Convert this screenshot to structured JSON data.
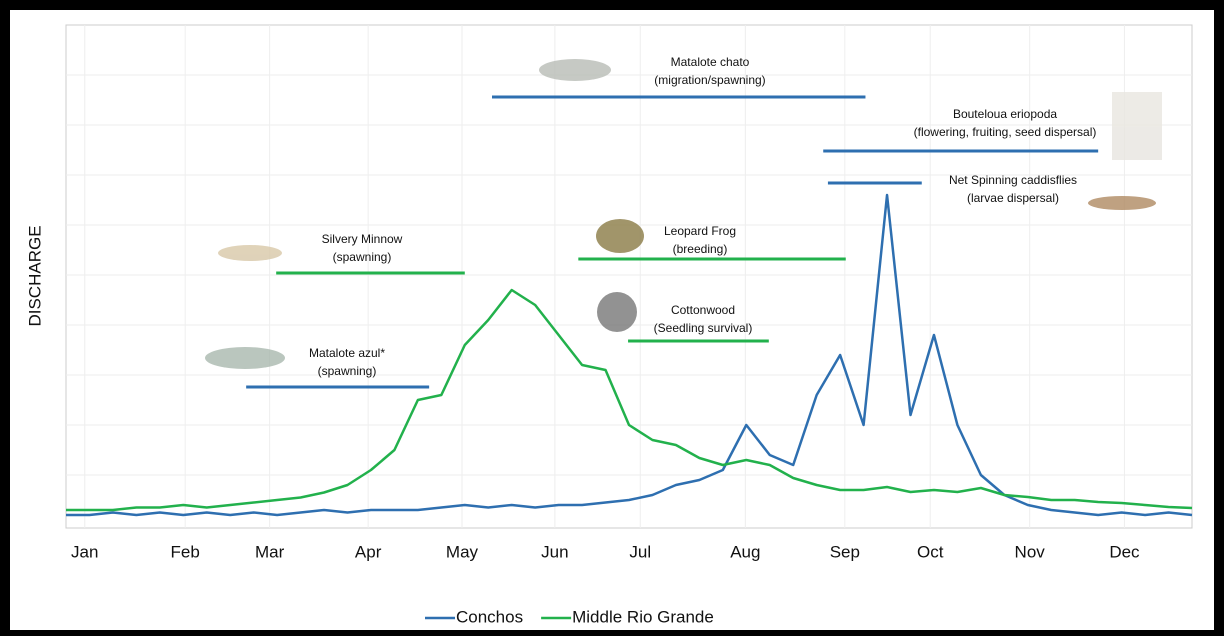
{
  "chart_data": {
    "type": "line",
    "y_label": "DISCHARGE",
    "xlim": [
      0,
      12
    ],
    "xticks": [
      {
        "value": 0.2,
        "label": "Jan"
      },
      {
        "value": 1.27,
        "label": "Feb"
      },
      {
        "value": 2.17,
        "label": "Mar"
      },
      {
        "value": 3.22,
        "label": "Apr"
      },
      {
        "value": 4.22,
        "label": "May"
      },
      {
        "value": 5.21,
        "label": "Jun"
      },
      {
        "value": 6.12,
        "label": "Jul"
      },
      {
        "value": 7.24,
        "label": "Aug"
      },
      {
        "value": 8.3,
        "label": "Sep"
      },
      {
        "value": 9.21,
        "label": "Oct"
      },
      {
        "value": 10.27,
        "label": "Nov"
      },
      {
        "value": 11.28,
        "label": "Dec"
      }
    ],
    "ylim": [
      0,
      100
    ],
    "yticks": [
      10,
      20,
      30,
      40,
      50,
      60,
      70,
      80,
      90
    ],
    "grid": true,
    "x": [
      0,
      0.25,
      0.5,
      0.75,
      1,
      1.25,
      1.5,
      1.75,
      2,
      2.25,
      2.5,
      2.75,
      3,
      3.25,
      3.5,
      3.75,
      4,
      4.25,
      4.5,
      4.75,
      5,
      5.25,
      5.5,
      5.75,
      6,
      6.25,
      6.5,
      6.75,
      7,
      7.25,
      7.5,
      7.75,
      8,
      8.25,
      8.5,
      8.75,
      9,
      9.25,
      9.5,
      9.75,
      10,
      10.25,
      10.5,
      10.75,
      11,
      11.25,
      11.5,
      11.75,
      12
    ],
    "series": [
      {
        "name": "Conchos",
        "color": "#2e6fb0",
        "values": [
          2,
          2,
          2.5,
          2,
          2.5,
          2,
          2.5,
          2,
          2.5,
          2,
          2.5,
          3,
          2.5,
          3,
          3,
          3,
          3.5,
          4,
          3.5,
          4,
          3.5,
          4,
          4,
          4.5,
          5,
          6,
          8,
          9,
          11,
          20,
          14,
          12,
          26,
          34,
          20,
          66,
          22,
          38,
          20,
          10,
          6,
          4,
          3,
          2.5,
          2,
          2.5,
          2,
          2.5,
          2
        ]
      },
      {
        "name": "Middle Rio Grande",
        "color": "#22b14c",
        "values": [
          3,
          3,
          3,
          3.5,
          3.5,
          4,
          3.5,
          4,
          4.5,
          5,
          5.5,
          6.5,
          8,
          11,
          15,
          25,
          26,
          36,
          41,
          47,
          44,
          38,
          32,
          31,
          20,
          17,
          16,
          13.4,
          12,
          13,
          12,
          9.4,
          8,
          7,
          7,
          7.6,
          6.6,
          7,
          6.6,
          7.4,
          6,
          5.6,
          5,
          5,
          4.6,
          4.4,
          4,
          3.6,
          3.4
        ]
      }
    ],
    "legend": "bottom",
    "periods": [
      {
        "label": [
          "Matalote chato",
          "(migration/spawning)"
        ],
        "start": 4.54,
        "end": 8.52,
        "color": "#2e6fb0"
      },
      {
        "label": [
          "Bouteloua eriopoda",
          "(flowering, fruiting, seed dispersal)"
        ],
        "start": 8.07,
        "end": 11.0,
        "color": "#2e6fb0"
      },
      {
        "label": [
          "Net Spinning caddisflies",
          "(larvae dispersal)"
        ],
        "start": 8.12,
        "end": 9.12,
        "color": "#2e6fb0"
      },
      {
        "label": [
          "Leopard Frog",
          "(breeding)"
        ],
        "start": 5.46,
        "end": 8.31,
        "color": "#22b14c"
      },
      {
        "label": [
          "Silvery Minnow",
          "(spawning)"
        ],
        "start": 2.24,
        "end": 4.25,
        "color": "#22b14c"
      },
      {
        "label": [
          "Cottonwood",
          "(Seedling survival)"
        ],
        "start": 5.99,
        "end": 7.49,
        "color": "#22b14c"
      },
      {
        "label": [
          "Matalote azul*",
          "(spawning)"
        ],
        "start": 1.92,
        "end": 3.87,
        "color": "#2e6fb0"
      }
    ]
  }
}
